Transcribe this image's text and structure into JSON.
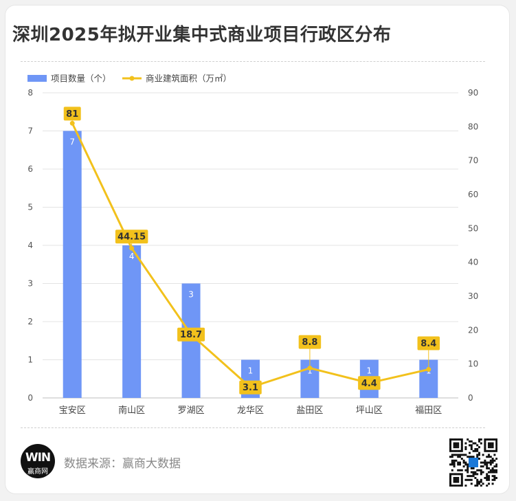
{
  "title": "深圳2025年拟开业集中式商业项目行政区分布",
  "footer": {
    "source": "数据来源：赢商大数据",
    "logo_text": "WIN",
    "logo_sub": "赢商网"
  },
  "chart_data": {
    "type": "bar+line",
    "title": "深圳2025年拟开业集中式商业项目行政区分布",
    "categories": [
      "宝安区",
      "南山区",
      "罗湖区",
      "龙华区",
      "盐田区",
      "坪山区",
      "福田区"
    ],
    "series": [
      {
        "name": "项目数量（个）",
        "type": "bar",
        "axis": "left",
        "color": "#6f96f6",
        "values": [
          7,
          4,
          3,
          1,
          1,
          1,
          1
        ]
      },
      {
        "name": "商业建筑面积（万㎡）",
        "type": "line",
        "axis": "right",
        "color": "#f2c11c",
        "values": [
          81,
          44.15,
          18.7,
          3.1,
          8.8,
          4.4,
          8.4
        ]
      }
    ],
    "y_left": {
      "min": 0,
      "max": 8,
      "ticks": [
        "0",
        "1",
        "2",
        "3",
        "4",
        "5",
        "6",
        "7",
        "8"
      ]
    },
    "y_right": {
      "min": 0,
      "max": 90,
      "ticks": [
        "0",
        "10",
        "20",
        "30",
        "40",
        "50",
        "60",
        "70",
        "80",
        "90"
      ]
    },
    "bar_labels": [
      "7",
      "4",
      "3",
      "1",
      "1",
      "1",
      "1"
    ],
    "line_labels": [
      "81",
      "44.15",
      "18.7",
      "3.1",
      "8.8",
      "4.4",
      "8.4"
    ],
    "grid": true,
    "legend": "top-left"
  }
}
